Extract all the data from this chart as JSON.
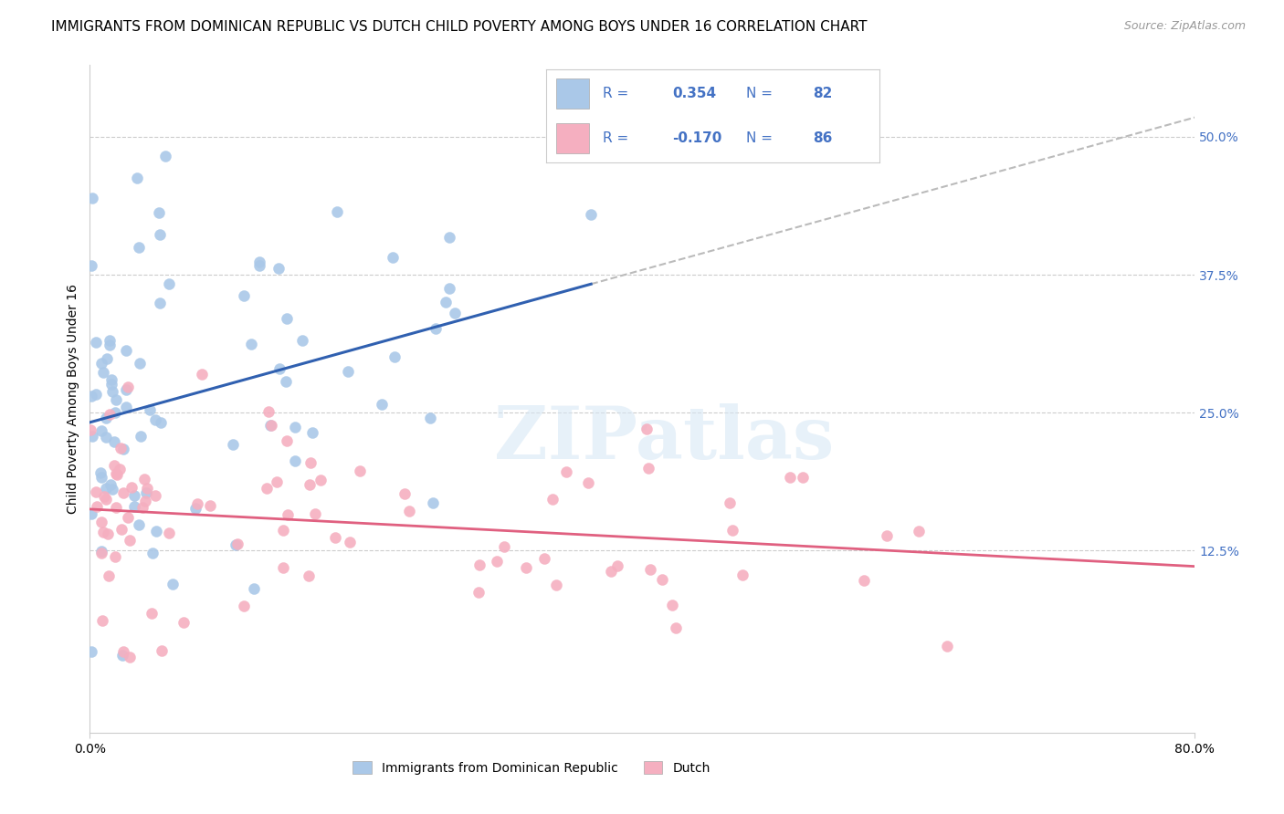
{
  "title": "IMMIGRANTS FROM DOMINICAN REPUBLIC VS DUTCH CHILD POVERTY AMONG BOYS UNDER 16 CORRELATION CHART",
  "source": "Source: ZipAtlas.com",
  "ylabel": "Child Poverty Among Boys Under 16",
  "ytick_labels": [
    "50.0%",
    "37.5%",
    "25.0%",
    "12.5%"
  ],
  "ytick_values": [
    0.5,
    0.375,
    0.25,
    0.125
  ],
  "xlim": [
    0.0,
    0.8
  ],
  "ylim": [
    -0.04,
    0.565
  ],
  "legend_labels": [
    "Immigrants from Dominican Republic",
    "Dutch"
  ],
  "R_blue": 0.354,
  "N_blue": 82,
  "R_pink": -0.17,
  "N_pink": 86,
  "blue_color": "#aac8e8",
  "pink_color": "#f5afc0",
  "blue_line_color": "#3060b0",
  "pink_line_color": "#e06080",
  "dash_color": "#bbbbbb",
  "title_fontsize": 11,
  "source_fontsize": 9,
  "axis_label_fontsize": 10,
  "tick_fontsize": 10,
  "legend_fontsize": 10,
  "watermark": "ZIPatlas",
  "grid_color": "#cccccc"
}
